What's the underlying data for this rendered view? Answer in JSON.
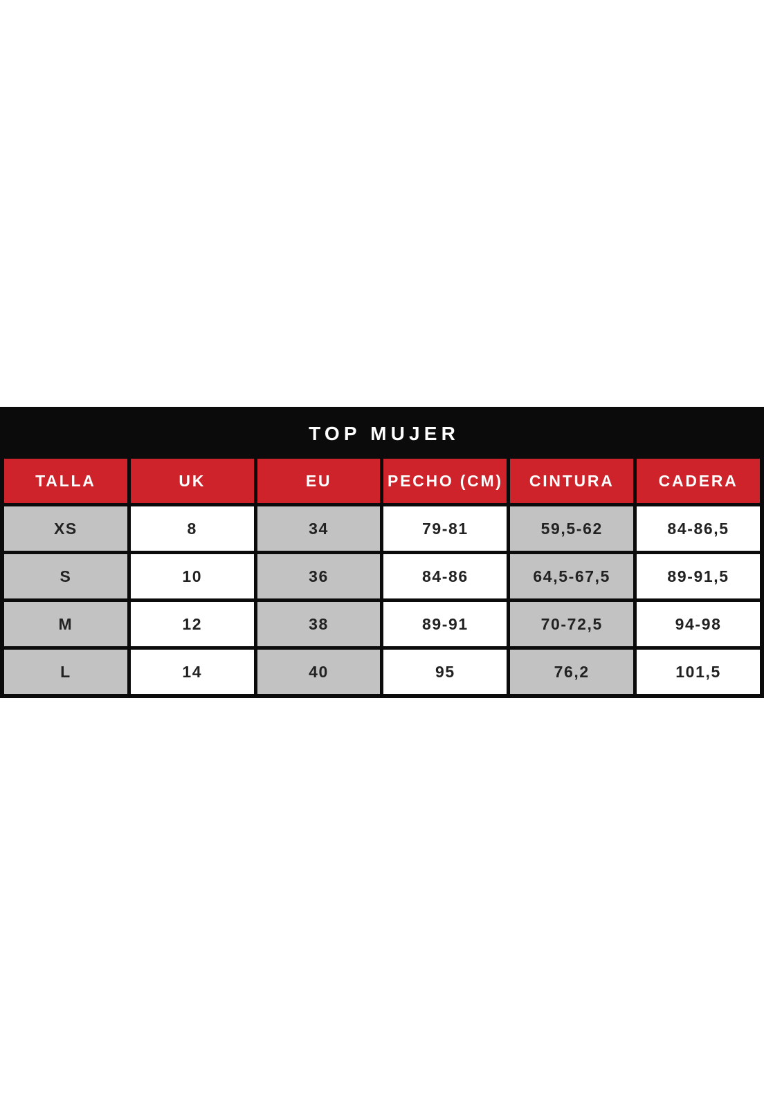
{
  "chart_data": {
    "type": "table",
    "title": "TOP MUJER",
    "columns": [
      "TALLA",
      "UK",
      "EU",
      "PECHO (CM)",
      "CINTURA",
      "CADERA"
    ],
    "rows": [
      [
        "XS",
        "8",
        "34",
        "79-81",
        "59,5-62",
        "84-86,5"
      ],
      [
        "S",
        "10",
        "36",
        "84-86",
        "64,5-67,5",
        "89-91,5"
      ],
      [
        "M",
        "12",
        "38",
        "89-91",
        "70-72,5",
        "94-98"
      ],
      [
        "L",
        "14",
        "40",
        "95",
        "76,2",
        "101,5"
      ]
    ]
  },
  "colors": {
    "header_red": "#ce232b",
    "cell_gray": "#c2c2c2",
    "border_black": "#0b0b0b",
    "title_bg": "#0b0b0b",
    "text_white": "#ffffff",
    "text_dark": "#222222"
  }
}
